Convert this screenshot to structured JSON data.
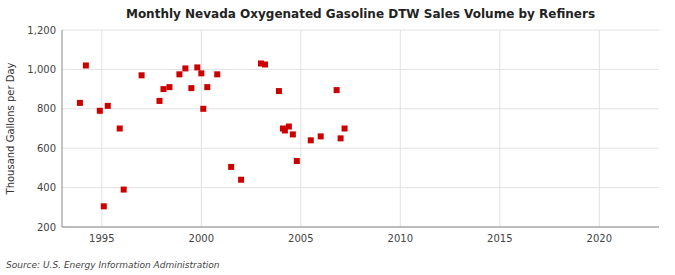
{
  "chart_data": {
    "type": "scatter",
    "title": "Monthly Nevada Oxygenated Gasoline DTW Sales Volume by Refiners",
    "ylabel": "Thousand Gallons per Day",
    "source": "Source: U.S. Energy Information Administration",
    "color": "#cc0000",
    "marker": "square",
    "grid": true,
    "xlim": [
      1993,
      2023
    ],
    "ylim": [
      200,
      1200
    ],
    "xticks": [
      1995,
      2000,
      2005,
      2010,
      2015,
      2020
    ],
    "yticks": [
      200,
      400,
      600,
      800,
      {
        "value": 1000,
        "label": "1,000"
      },
      {
        "value": 1200,
        "label": "1,200"
      }
    ],
    "x": [
      1993.9,
      1994.2,
      1994.9,
      1995.1,
      1995.3,
      1995.9,
      1996.1,
      1997.0,
      1997.9,
      1998.1,
      1998.4,
      1998.9,
      1999.2,
      1999.5,
      1999.8,
      2000.0,
      2000.1,
      2000.3,
      2000.8,
      2001.5,
      2002.0,
      2003.0,
      2003.2,
      2003.9,
      2004.1,
      2004.2,
      2004.4,
      2004.6,
      2004.8,
      2005.5,
      2006.0,
      2006.8,
      2007.0,
      2007.2
    ],
    "values": [
      830,
      1020,
      790,
      305,
      815,
      700,
      390,
      970,
      840,
      900,
      910,
      975,
      1005,
      905,
      1010,
      980,
      800,
      910,
      975,
      505,
      440,
      1030,
      1025,
      890,
      700,
      690,
      710,
      670,
      535,
      640,
      660,
      895,
      650,
      700
    ]
  }
}
